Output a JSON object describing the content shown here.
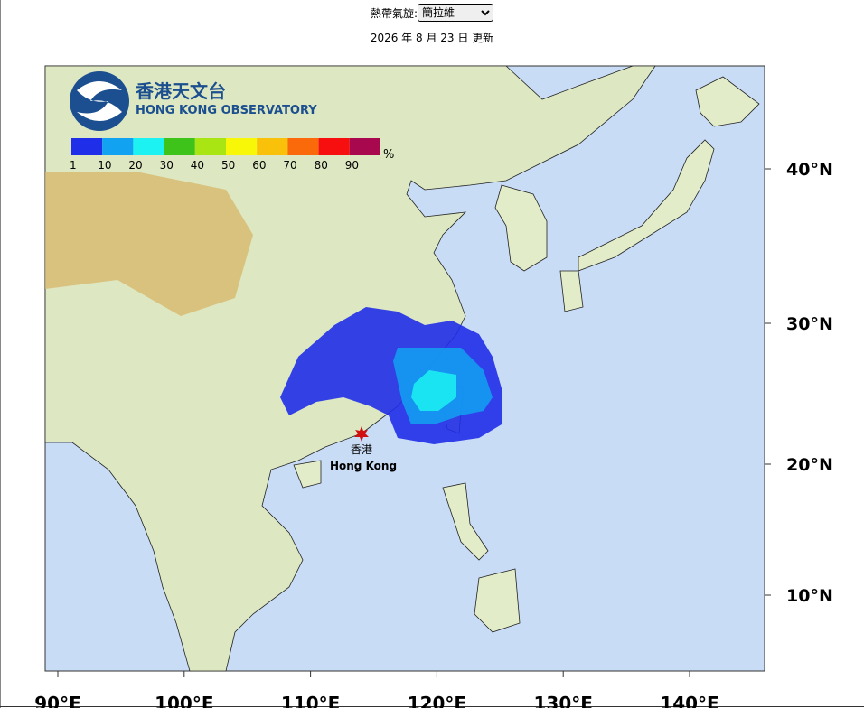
{
  "header": {
    "label": "熱帶氣旋:",
    "selected": "簡拉維",
    "updated": "2026 年 8 月 23 日 更新"
  },
  "logo": {
    "name_zh": "香港天文台",
    "name_en": "HONG KONG OBSERVATORY"
  },
  "legend": {
    "unit": "%",
    "items": [
      {
        "label": "1",
        "color": "#1f2ee8"
      },
      {
        "label": "10",
        "color": "#12a2f2"
      },
      {
        "label": "20",
        "color": "#1cf2f2"
      },
      {
        "label": "30",
        "color": "#3ec31a"
      },
      {
        "label": "40",
        "color": "#a8e512"
      },
      {
        "label": "50",
        "color": "#f7f707"
      },
      {
        "label": "60",
        "color": "#fac10a"
      },
      {
        "label": "70",
        "color": "#fa6a0a"
      },
      {
        "label": "80",
        "color": "#f70f0f"
      },
      {
        "label": "90",
        "color": "#a8084e"
      }
    ]
  },
  "location": {
    "name_zh": "香港",
    "name_en": "Hong Kong"
  },
  "latitude_labels": [
    "40°N",
    "30°N",
    "20°N",
    "10°N"
  ],
  "longitude_labels": [
    "90°E",
    "100°E",
    "110°E",
    "120°E",
    "130°E",
    "140°E"
  ]
}
